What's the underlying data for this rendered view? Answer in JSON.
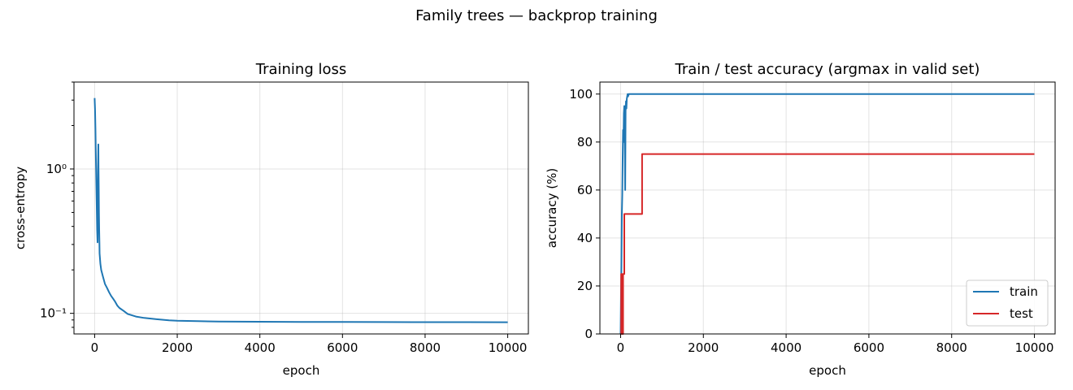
{
  "figure_title": "Family trees — backprop training",
  "chart_data": [
    {
      "type": "line",
      "title": "Training loss",
      "xlabel": "epoch",
      "ylabel": "cross-entropy",
      "yscale": "log",
      "xlim": [
        -500,
        10500
      ],
      "ylim": [
        0.072,
        4.0
      ],
      "xticks": [
        0,
        2000,
        4000,
        6000,
        8000,
        10000
      ],
      "xtick_labels": [
        "0",
        "2000",
        "4000",
        "6000",
        "8000",
        "10000"
      ],
      "yticks": [
        0.1,
        1
      ],
      "ytick_labels": [
        "10⁻¹",
        "10⁰"
      ],
      "grid": true,
      "series": [
        {
          "color": "#1f77b4",
          "x": [
            0,
            10,
            20,
            30,
            40,
            50,
            60,
            70,
            80,
            90,
            95,
            100,
            105,
            110,
            115,
            120,
            140,
            160,
            200,
            250,
            300,
            350,
            400,
            450,
            500,
            550,
            600,
            700,
            800,
            1000,
            1200,
            1500,
            1800,
            2000,
            2500,
            3000,
            4000,
            5000,
            6000,
            7000,
            8000,
            9000,
            10000
          ],
          "y": [
            3.1,
            2.6,
            1.9,
            1.25,
            0.85,
            0.55,
            0.38,
            0.31,
            0.95,
            1.48,
            1.0,
            0.7,
            0.5,
            0.38,
            0.31,
            0.26,
            0.22,
            0.2,
            0.18,
            0.16,
            0.15,
            0.14,
            0.132,
            0.126,
            0.12,
            0.113,
            0.109,
            0.104,
            0.099,
            0.095,
            0.093,
            0.091,
            0.0895,
            0.0888,
            0.0882,
            0.0878,
            0.0874,
            0.0872,
            0.0871,
            0.087,
            0.0869,
            0.0869,
            0.0868
          ]
        }
      ]
    },
    {
      "type": "line",
      "title": "Train / test accuracy (argmax in valid set)",
      "xlabel": "epoch",
      "ylabel": "accuracy (%)",
      "xlim": [
        -500,
        10500
      ],
      "ylim": [
        0,
        105
      ],
      "xticks": [
        0,
        2000,
        4000,
        6000,
        8000,
        10000
      ],
      "xtick_labels": [
        "0",
        "2000",
        "4000",
        "6000",
        "8000",
        "10000"
      ],
      "yticks": [
        0,
        20,
        40,
        60,
        80,
        100
      ],
      "ytick_labels": [
        "0",
        "20",
        "40",
        "60",
        "80",
        "100"
      ],
      "grid": true,
      "legend_position": "lower right",
      "series": [
        {
          "name": "train",
          "color": "#1f77b4",
          "x": [
            0,
            10,
            20,
            30,
            40,
            50,
            60,
            70,
            80,
            90,
            100,
            110,
            120,
            130,
            140,
            150,
            160,
            170,
            180,
            200,
            10000
          ],
          "y": [
            0,
            17,
            28,
            50,
            58,
            73,
            85,
            80,
            92,
            95,
            90,
            60,
            93,
            97,
            94,
            98,
            99,
            100,
            99,
            100,
            100
          ]
        },
        {
          "name": "test",
          "color": "#d62728",
          "step": true,
          "x": [
            0,
            15,
            30,
            60,
            90,
            100,
            520,
            10000
          ],
          "y": [
            0,
            25,
            0,
            25,
            50,
            50,
            75,
            75
          ]
        }
      ]
    }
  ]
}
